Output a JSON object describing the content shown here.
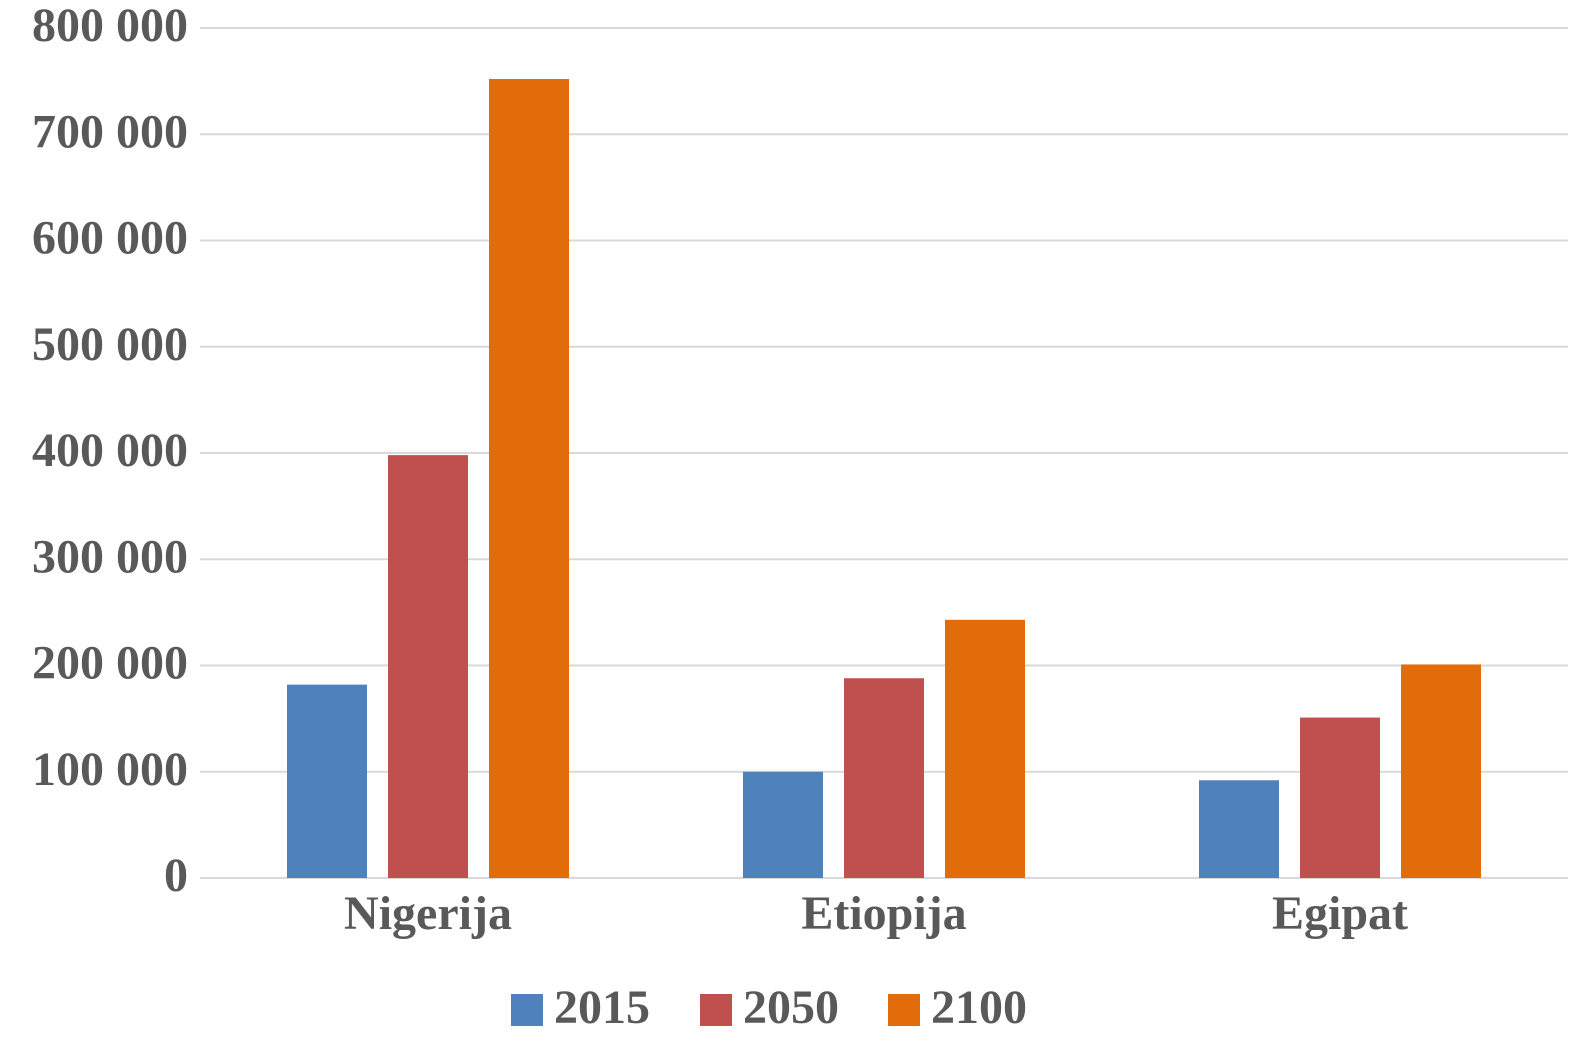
{
  "chart_data": {
    "type": "bar",
    "categories": [
      "Nigerija",
      "Etiopija",
      "Egipat"
    ],
    "series": [
      {
        "name": "2015",
        "color": "#4f81bd",
        "values": [
          182000,
          100000,
          92000
        ]
      },
      {
        "name": "2050",
        "color": "#c0504d",
        "values": [
          398000,
          188000,
          151000
        ]
      },
      {
        "name": "2100",
        "color": "#e36c0a",
        "values": [
          752000,
          243000,
          201000
        ]
      }
    ],
    "ylim": [
      0,
      800000
    ],
    "yticks": [
      0,
      {
        "value": 100000,
        "label": "100 000"
      },
      {
        "value": 200000,
        "label": "200 000"
      },
      {
        "value": 300000,
        "label": "300 000"
      },
      {
        "value": 400000,
        "label": "400 000"
      },
      {
        "value": 500000,
        "label": "500 000"
      },
      {
        "value": 600000,
        "label": "600 000"
      },
      {
        "value": 700000,
        "label": "700 000"
      },
      {
        "value": 800000,
        "label": "800 000"
      }
    ],
    "grid": true,
    "legend": "bottom"
  }
}
